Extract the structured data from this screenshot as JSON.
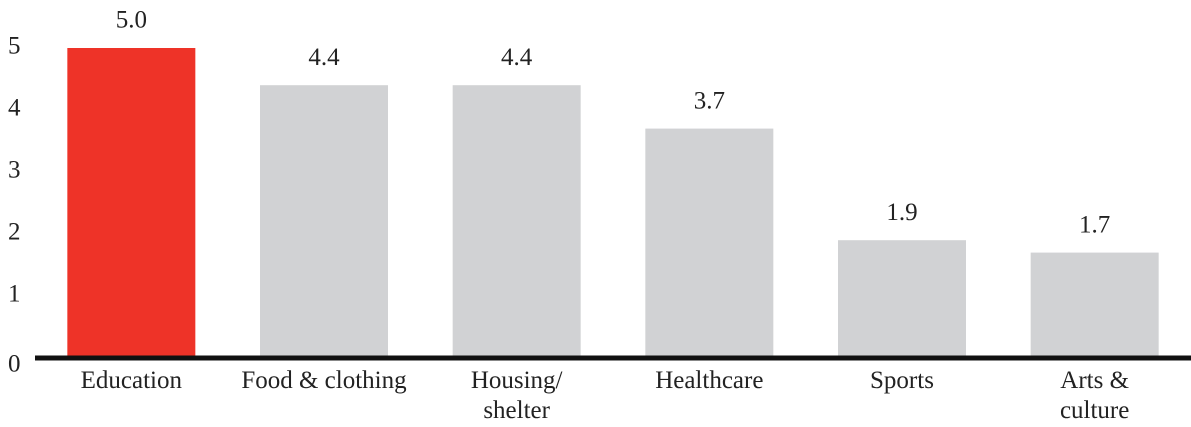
{
  "chart_data": {
    "type": "bar",
    "categories": [
      "Education",
      "Food & clothing",
      "Housing/\nshelter",
      "Healthcare",
      "Sports",
      "Arts &\nculture"
    ],
    "values": [
      5.0,
      4.4,
      4.4,
      3.7,
      1.9,
      1.7
    ],
    "value_labels": [
      "5.0",
      "4.4",
      "4.4",
      "3.7",
      "1.9",
      "1.7"
    ],
    "colors": [
      "#ee3328",
      "#d1d2d4",
      "#d1d2d4",
      "#d1d2d4",
      "#d1d2d4",
      "#d1d2d4"
    ],
    "ylim": [
      0,
      5
    ],
    "yticks": [
      0,
      1,
      2,
      3,
      4,
      5
    ],
    "grid": false
  }
}
